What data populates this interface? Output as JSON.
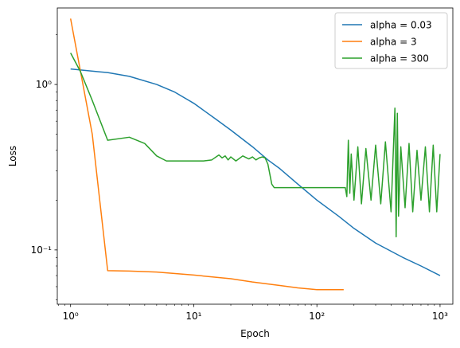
{
  "chart_data": {
    "type": "line",
    "title": "",
    "xlabel": "Epoch",
    "ylabel": "Loss",
    "xscale": "log",
    "yscale": "log",
    "xlim": [
      0.78,
      1270
    ],
    "ylim": [
      0.047,
      2.9
    ],
    "x_ticks": [
      {
        "value": 1,
        "label": "10⁰"
      },
      {
        "value": 10,
        "label": "10¹"
      },
      {
        "value": 100,
        "label": "10²"
      },
      {
        "value": 1000,
        "label": "10³"
      }
    ],
    "y_ticks": [
      {
        "value": 0.1,
        "label": "10⁻¹"
      },
      {
        "value": 1,
        "label": "10⁰"
      }
    ],
    "grid": false,
    "legend_position": "top-right",
    "series": [
      {
        "name": "alpha = 0.03",
        "color": "#1f77b4",
        "x": [
          1,
          2,
          3,
          5,
          7,
          10,
          15,
          20,
          30,
          40,
          50,
          70,
          100,
          150,
          200,
          300,
          500,
          700,
          1000
        ],
        "y": [
          1.24,
          1.18,
          1.12,
          1.0,
          0.9,
          0.77,
          0.62,
          0.53,
          0.42,
          0.35,
          0.31,
          0.25,
          0.2,
          0.16,
          0.135,
          0.11,
          0.09,
          0.08,
          0.07
        ]
      },
      {
        "name": "alpha = 3",
        "color": "#ff7f0e",
        "x": [
          1,
          1.5,
          2,
          3,
          5,
          10,
          20,
          30,
          50,
          70,
          100,
          130,
          165
        ],
        "y": [
          2.5,
          0.5,
          0.075,
          0.0745,
          0.0735,
          0.0705,
          0.067,
          0.064,
          0.061,
          0.059,
          0.0575,
          0.0575,
          0.0575
        ]
      },
      {
        "name": "alpha = 300",
        "color": "#2ca02c",
        "x": [
          1,
          1.2,
          1.5,
          2,
          3,
          4,
          5,
          6,
          8,
          10,
          12,
          14,
          16,
          17,
          18,
          19,
          20,
          22,
          25,
          28,
          30,
          32,
          34,
          36,
          38,
          40,
          43,
          45,
          50,
          60,
          80,
          100,
          120,
          150,
          170,
          175,
          180,
          185,
          190,
          200,
          215,
          230,
          250,
          275,
          300,
          330,
          360,
          400,
          430,
          440,
          450,
          460,
          480,
          520,
          560,
          600,
          650,
          700,
          760,
          820,
          880,
          940,
          1000
        ],
        "y": [
          1.55,
          1.2,
          0.8,
          0.46,
          0.48,
          0.44,
          0.37,
          0.345,
          0.345,
          0.345,
          0.345,
          0.35,
          0.375,
          0.36,
          0.37,
          0.35,
          0.365,
          0.345,
          0.37,
          0.355,
          0.365,
          0.35,
          0.36,
          0.365,
          0.36,
          0.33,
          0.25,
          0.238,
          0.238,
          0.238,
          0.238,
          0.238,
          0.238,
          0.238,
          0.238,
          0.21,
          0.46,
          0.22,
          0.38,
          0.2,
          0.42,
          0.19,
          0.41,
          0.2,
          0.43,
          0.19,
          0.45,
          0.17,
          0.72,
          0.12,
          0.67,
          0.16,
          0.42,
          0.18,
          0.44,
          0.17,
          0.4,
          0.2,
          0.42,
          0.17,
          0.43,
          0.17,
          0.38
        ]
      }
    ]
  }
}
